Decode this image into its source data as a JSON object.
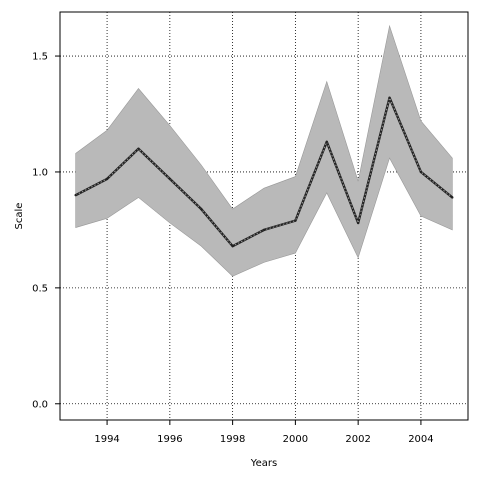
{
  "chart_data": {
    "type": "line",
    "title": "",
    "xlabel": "Years",
    "ylabel": "Scale",
    "xlim": [
      1992.5,
      2005.5
    ],
    "ylim": [
      -0.07,
      1.69
    ],
    "x_ticks": [
      1994,
      1996,
      1998,
      2000,
      2002,
      2004
    ],
    "y_ticks": [
      0.0,
      0.5,
      1.0,
      1.5
    ],
    "x_tick_labels": [
      "1994",
      "1996",
      "1998",
      "2000",
      "2002",
      "2004"
    ],
    "y_tick_labels": [
      "0.0",
      "0.5",
      "1.0",
      "1.5"
    ],
    "grid": true,
    "x": [
      1993,
      1994,
      1995,
      1996,
      1997,
      1998,
      1999,
      2000,
      2001,
      2002,
      2003,
      2004,
      2005
    ],
    "series": [
      {
        "values": [
          0.9,
          0.97,
          1.1,
          0.97,
          0.84,
          0.68,
          0.75,
          0.79,
          1.13,
          0.78,
          1.32,
          1.0,
          0.89
        ],
        "line_color": "#222222",
        "line_style": "dotted-overlay"
      }
    ],
    "band": {
      "lower": [
        0.76,
        0.8,
        0.89,
        0.78,
        0.68,
        0.55,
        0.61,
        0.65,
        0.91,
        0.63,
        1.06,
        0.81,
        0.75
      ],
      "upper": [
        1.08,
        1.18,
        1.36,
        1.2,
        1.03,
        0.84,
        0.93,
        0.98,
        1.39,
        0.96,
        1.63,
        1.22,
        1.06
      ],
      "fill_color": "#b9b9b9",
      "edge_color": "#999999"
    }
  }
}
